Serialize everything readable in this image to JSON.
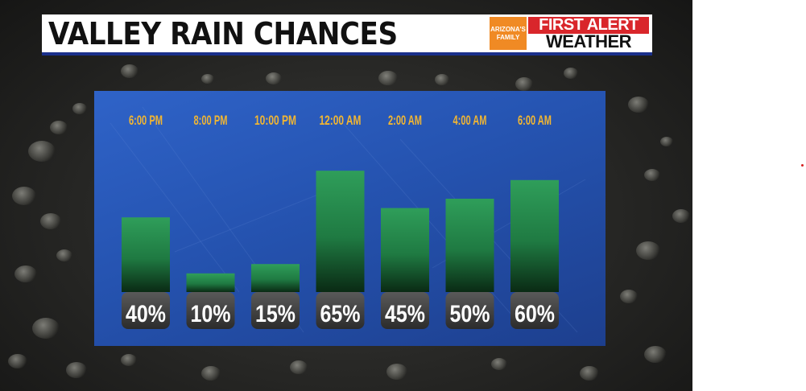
{
  "header": {
    "title": "VALLEY RAIN CHANCES",
    "logo_brand_line1": "ARIZONA'S",
    "logo_brand_line2": "FAMILY",
    "logo_first_alert": "FIRST ALERT",
    "logo_weather": "WEATHER"
  },
  "colors": {
    "bar_top": "#2f9e5a",
    "bar_bottom": "#0a2a14",
    "label_color": "#f2b632",
    "panel": "#2a5bbd",
    "title_rule": "#1a2f8a"
  },
  "chart_data": {
    "type": "bar",
    "title": "VALLEY RAIN CHANCES",
    "categories": [
      "6:00 PM",
      "8:00 PM",
      "10:00 PM",
      "12:00 AM",
      "2:00 AM",
      "4:00 AM",
      "6:00 AM"
    ],
    "values": [
      40,
      10,
      15,
      65,
      45,
      50,
      60
    ],
    "value_labels": [
      "40%",
      "10%",
      "15%",
      "65%",
      "45%",
      "50%",
      "60%"
    ],
    "unit": "%",
    "ylim": [
      0,
      100
    ],
    "grid": false,
    "legend": "none"
  }
}
